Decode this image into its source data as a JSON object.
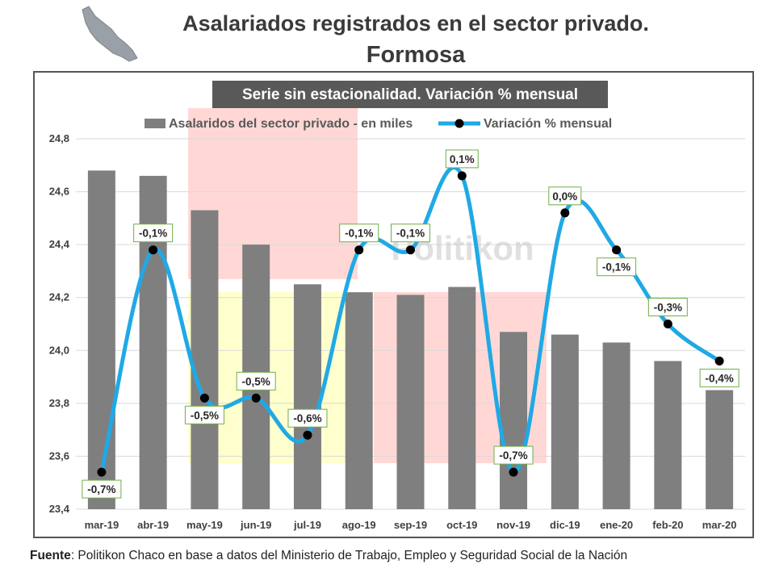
{
  "header": {
    "title": "Asalariados registrados en el sector privado.",
    "subtitle": "Formosa",
    "map_icon": "formosa-province-map-icon"
  },
  "footer": {
    "label": "Fuente",
    "text": ": Politikon Chaco en base a datos del Ministerio de Trabajo, Empleo y Seguridad Social de la Nación"
  },
  "watermark": "Politikon",
  "colors": {
    "bar": "#7f7f7f",
    "line": "#1fa9e6",
    "marker": "#000000",
    "label_border": "#70ad47",
    "banner_bg": "#595959",
    "highlight_red": "#ffc7c4",
    "highlight_yellow": "#ffffc8"
  },
  "chart_data": {
    "type": "bar",
    "title": "Serie sin estacionalidad. Variación % mensual",
    "categories": [
      "mar-19",
      "abr-19",
      "may-19",
      "jun-19",
      "jul-19",
      "ago-19",
      "sep-19",
      "oct-19",
      "nov-19",
      "dic-19",
      "ene-20",
      "feb-20",
      "mar-20"
    ],
    "ylim": [
      23.4,
      24.8
    ],
    "yticks": [
      "23,4",
      "23,6",
      "23,8",
      "24,0",
      "24,2",
      "24,4",
      "24,6",
      "24,8"
    ],
    "ytick_values": [
      23.4,
      23.6,
      23.8,
      24.0,
      24.2,
      24.4,
      24.6,
      24.8
    ],
    "grid": true,
    "legend_position": "top",
    "series": [
      {
        "name": "Asalaridos del sector privado - en miles",
        "type": "bar",
        "axis": "left",
        "values": [
          24.68,
          24.66,
          24.53,
          24.4,
          24.25,
          24.22,
          24.21,
          24.24,
          24.07,
          24.06,
          24.03,
          23.96,
          23.85
        ]
      },
      {
        "name": "Variación % mensual",
        "type": "line",
        "axis": "secondary (unlabeled)",
        "values": [
          -0.7,
          -0.1,
          -0.5,
          -0.5,
          -0.6,
          -0.1,
          -0.1,
          0.1,
          -0.7,
          0.0,
          -0.1,
          -0.3,
          -0.4
        ],
        "labels": [
          "-0,7%",
          "-0,1%",
          "-0,5%",
          "-0,5%",
          "-0,6%",
          "-0,1%",
          "-0,1%",
          "0,1%",
          "-0,7%",
          "0,0%",
          "-0,1%",
          "-0,3%",
          "-0,4%"
        ],
        "label_positions": [
          "below",
          "above",
          "below",
          "above",
          "above",
          "above",
          "above",
          "above",
          "above",
          "above",
          "below",
          "above",
          "below"
        ]
      }
    ]
  }
}
